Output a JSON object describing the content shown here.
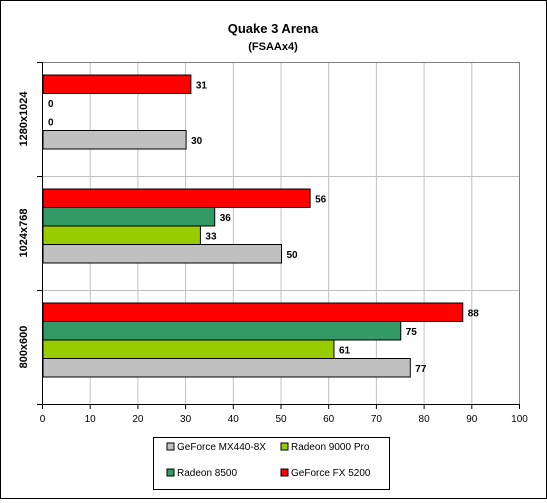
{
  "chart_data": {
    "type": "bar",
    "orientation": "horizontal",
    "title": "Quake 3 Arena",
    "subtitle": "(FSAAx4)",
    "categories": [
      "1280x1024",
      "1024x768",
      "800x600"
    ],
    "series": [
      {
        "name": "GeForce MX440-8X",
        "color": "#c0c0c0",
        "values": [
          30,
          50,
          77
        ]
      },
      {
        "name": "Radeon 9000 Pro",
        "color": "#99cc00",
        "values": [
          0,
          33,
          61
        ]
      },
      {
        "name": "Radeon 8500",
        "color": "#339966",
        "values": [
          0,
          36,
          75
        ]
      },
      {
        "name": "GeForce FX 5200",
        "color": "#ff0000",
        "values": [
          31,
          56,
          88
        ]
      }
    ],
    "xlim": [
      0,
      100
    ],
    "xticks": [
      0,
      10,
      20,
      30,
      40,
      50,
      60,
      70,
      80,
      90,
      100
    ],
    "grid": true,
    "legend_position": "bottom",
    "legend_order": [
      "GeForce MX440-8X",
      "Radeon 9000 Pro",
      "Radeon 8500",
      "GeForce FX 5200"
    ],
    "plot_background": "#ffffff",
    "grid_color": "#c0c0c0"
  }
}
